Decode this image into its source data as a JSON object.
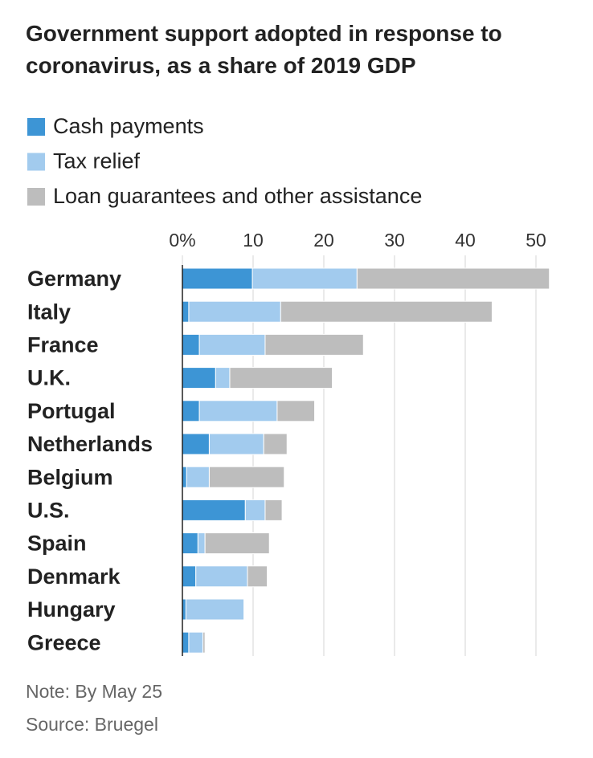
{
  "chart_data": {
    "type": "stacked-barh",
    "title": "Government support adopted in response to coronavirus, as a share of 2019 GDP",
    "categories": [
      "Germany",
      "Italy",
      "France",
      "U.K.",
      "Portugal",
      "Netherlands",
      "Belgium",
      "U.S.",
      "Spain",
      "Denmark",
      "Hungary",
      "Greece"
    ],
    "series": [
      {
        "name": "Cash payments",
        "color": "#3d95d5",
        "values": [
          9.9,
          0.9,
          2.4,
          4.7,
          2.4,
          3.8,
          0.6,
          8.9,
          2.2,
          1.9,
          0.5,
          0.9
        ]
      },
      {
        "name": "Tax relief",
        "color": "#a2cbee",
        "values": [
          14.8,
          13.0,
          9.3,
          2.0,
          11.0,
          7.7,
          3.2,
          2.8,
          1.0,
          7.3,
          8.2,
          2.0
        ]
      },
      {
        "name": "Loan guarantees and other assistance",
        "color": "#bdbdbd",
        "values": [
          27.2,
          29.9,
          13.9,
          14.5,
          5.3,
          3.3,
          10.6,
          2.4,
          9.1,
          2.8,
          0,
          0.3
        ]
      }
    ],
    "xlim": [
      0,
      52
    ],
    "xticks": [
      {
        "value": 0,
        "label": "0%"
      },
      10,
      20,
      30,
      40,
      50
    ],
    "grid": true,
    "note": "Note: By May 25",
    "source": "Source: Bruegel"
  }
}
